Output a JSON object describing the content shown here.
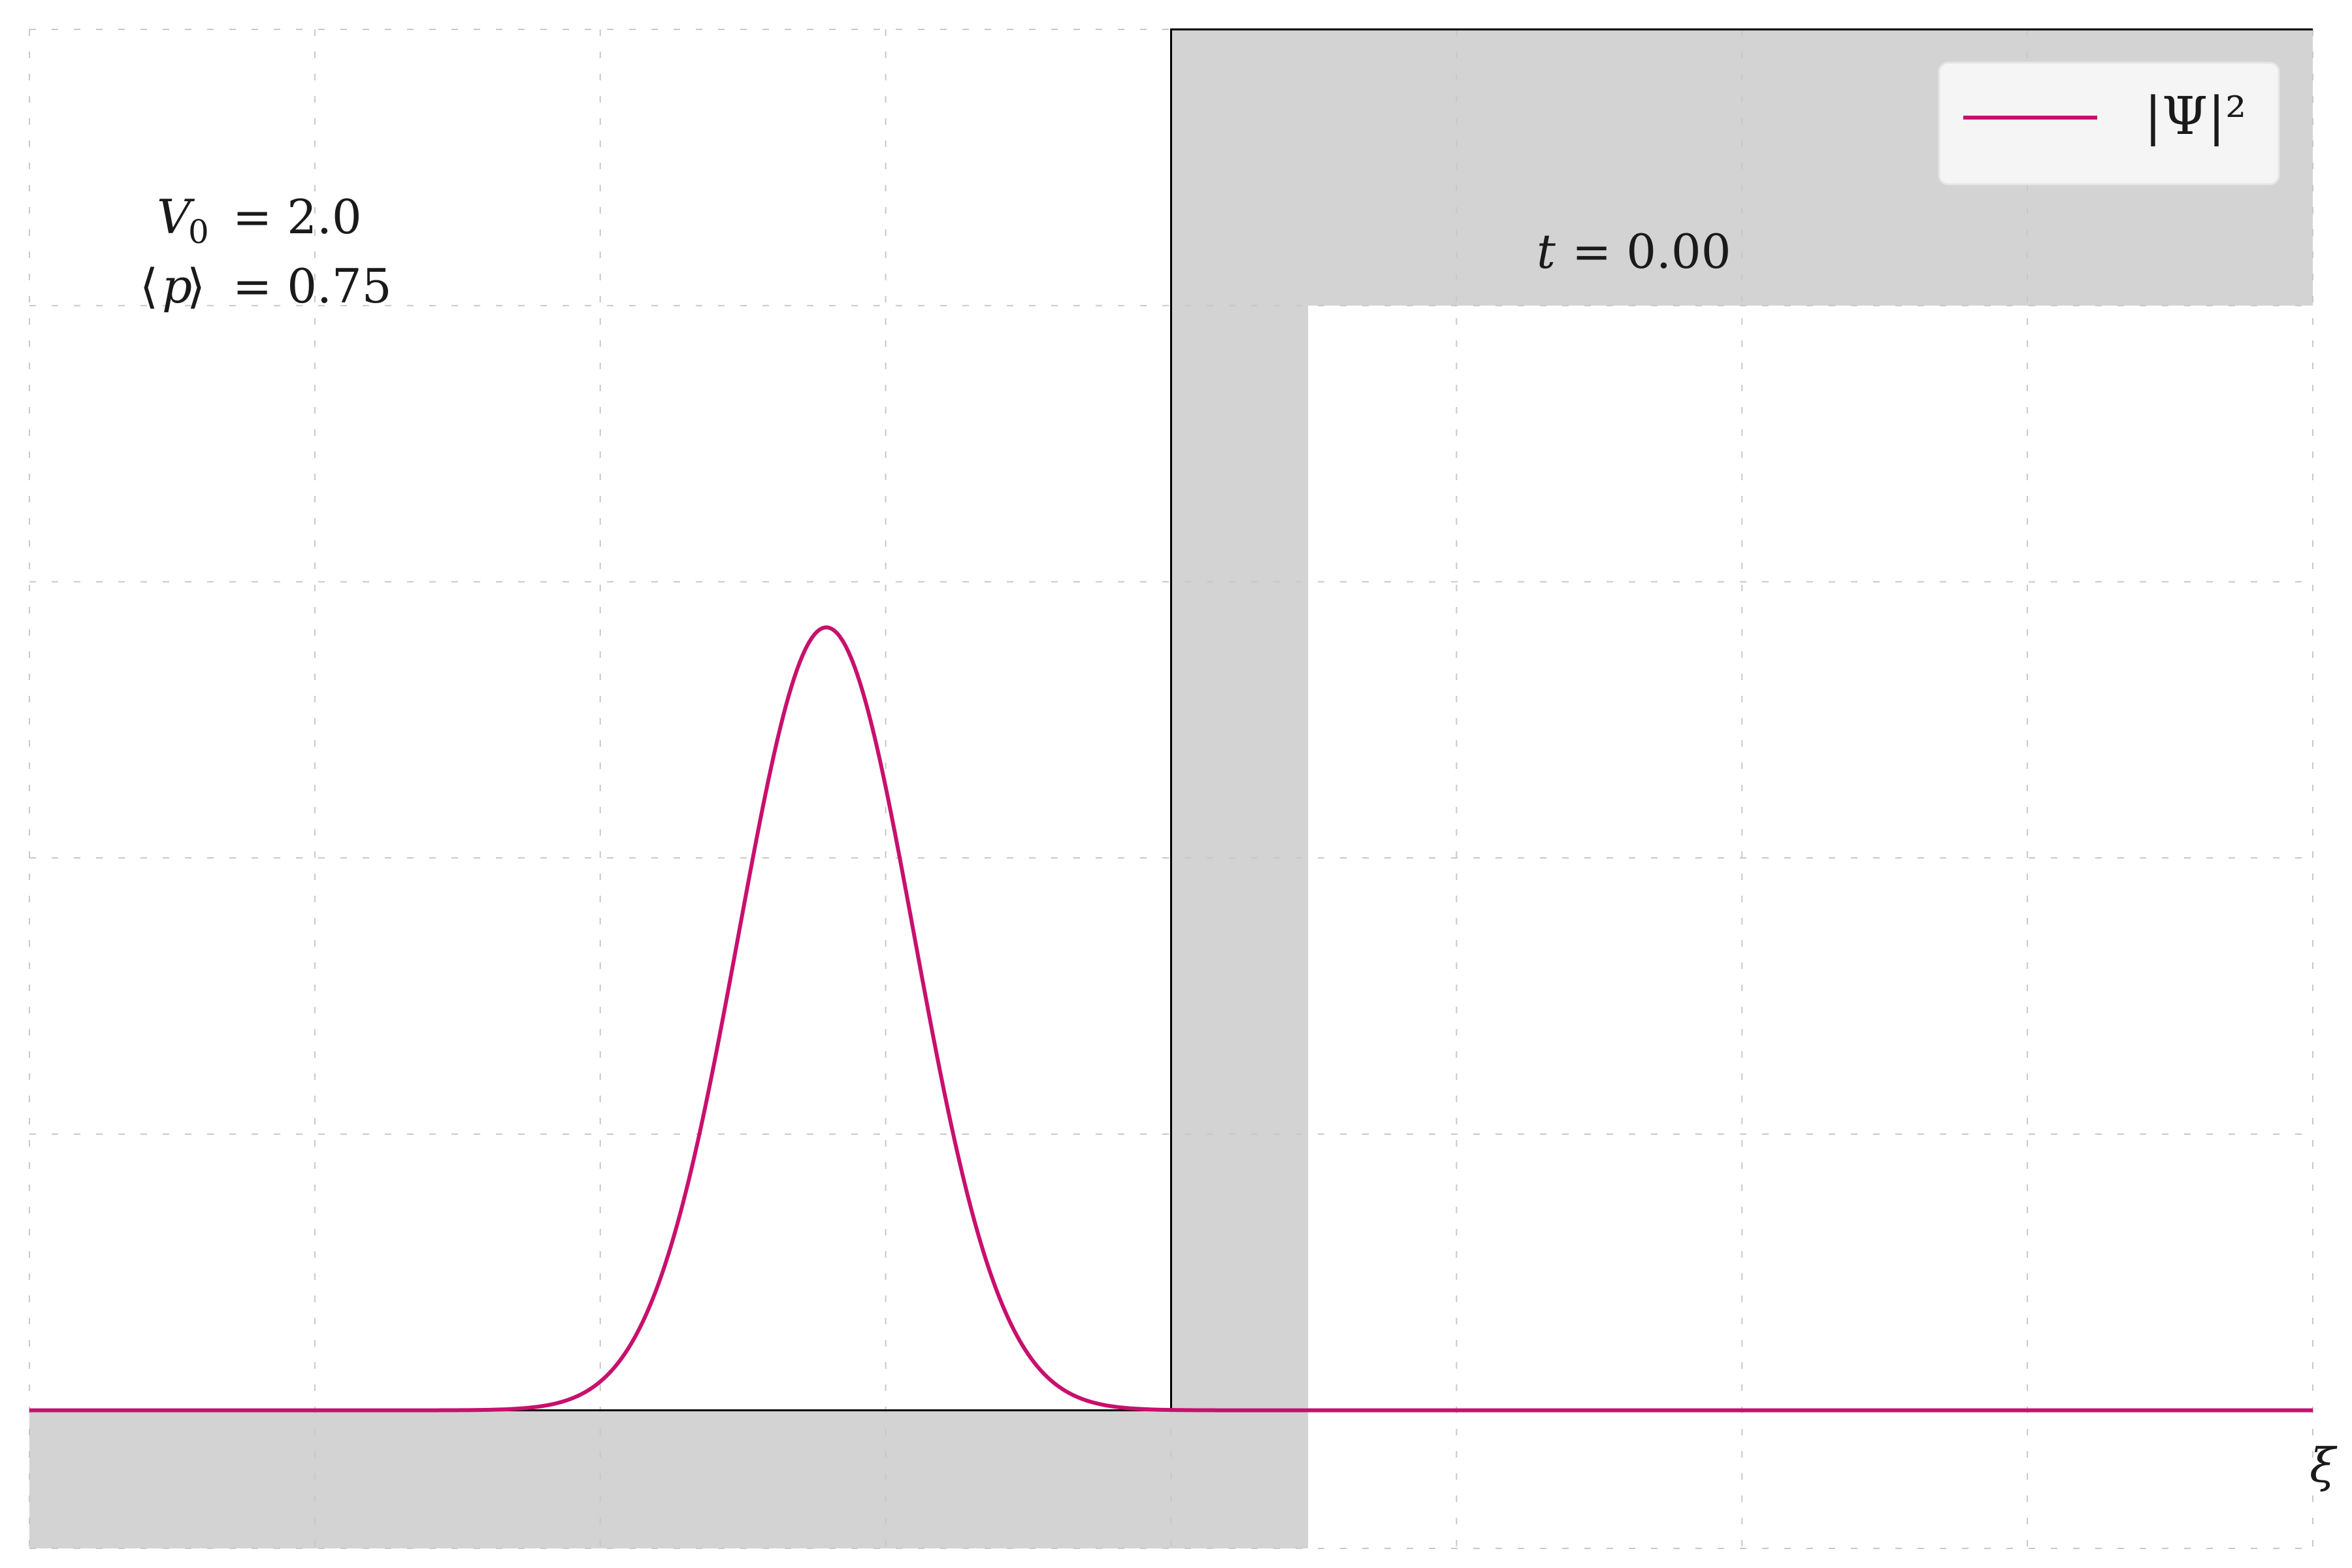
{
  "chart_data": {
    "type": "line",
    "xlabel": "ξ",
    "ylabel": "",
    "title": "",
    "grid": true,
    "legend": {
      "placement": "top-right",
      "entries": [
        "|Ψ|²"
      ]
    },
    "series": [
      {
        "name": "|Ψ|²",
        "color": "#c8106e",
        "shape": "gaussian",
        "center": 0.349,
        "width": 0.0385,
        "peak": 0.567,
        "baseline": 0
      }
    ],
    "potential": {
      "name": "V",
      "color": "#000000",
      "step_at": 0.5,
      "low": 0,
      "high": 1.0
    },
    "barrier_band": {
      "color": "#d3d3d3",
      "thickness_x": 0.06,
      "thickness_y": 0.1
    },
    "xlim": [
      0,
      1
    ],
    "ylim": [
      -0.1,
      1.0
    ],
    "annotations": {
      "V0_label": "V",
      "V0_sub": "0",
      "V0_value": "= 2.0",
      "p_label_open": "⟨",
      "p_label_var": "p",
      "p_label_close": "⟩",
      "p_value": "= 0.75",
      "time_var": "t",
      "time_value": "= 0.00"
    }
  }
}
